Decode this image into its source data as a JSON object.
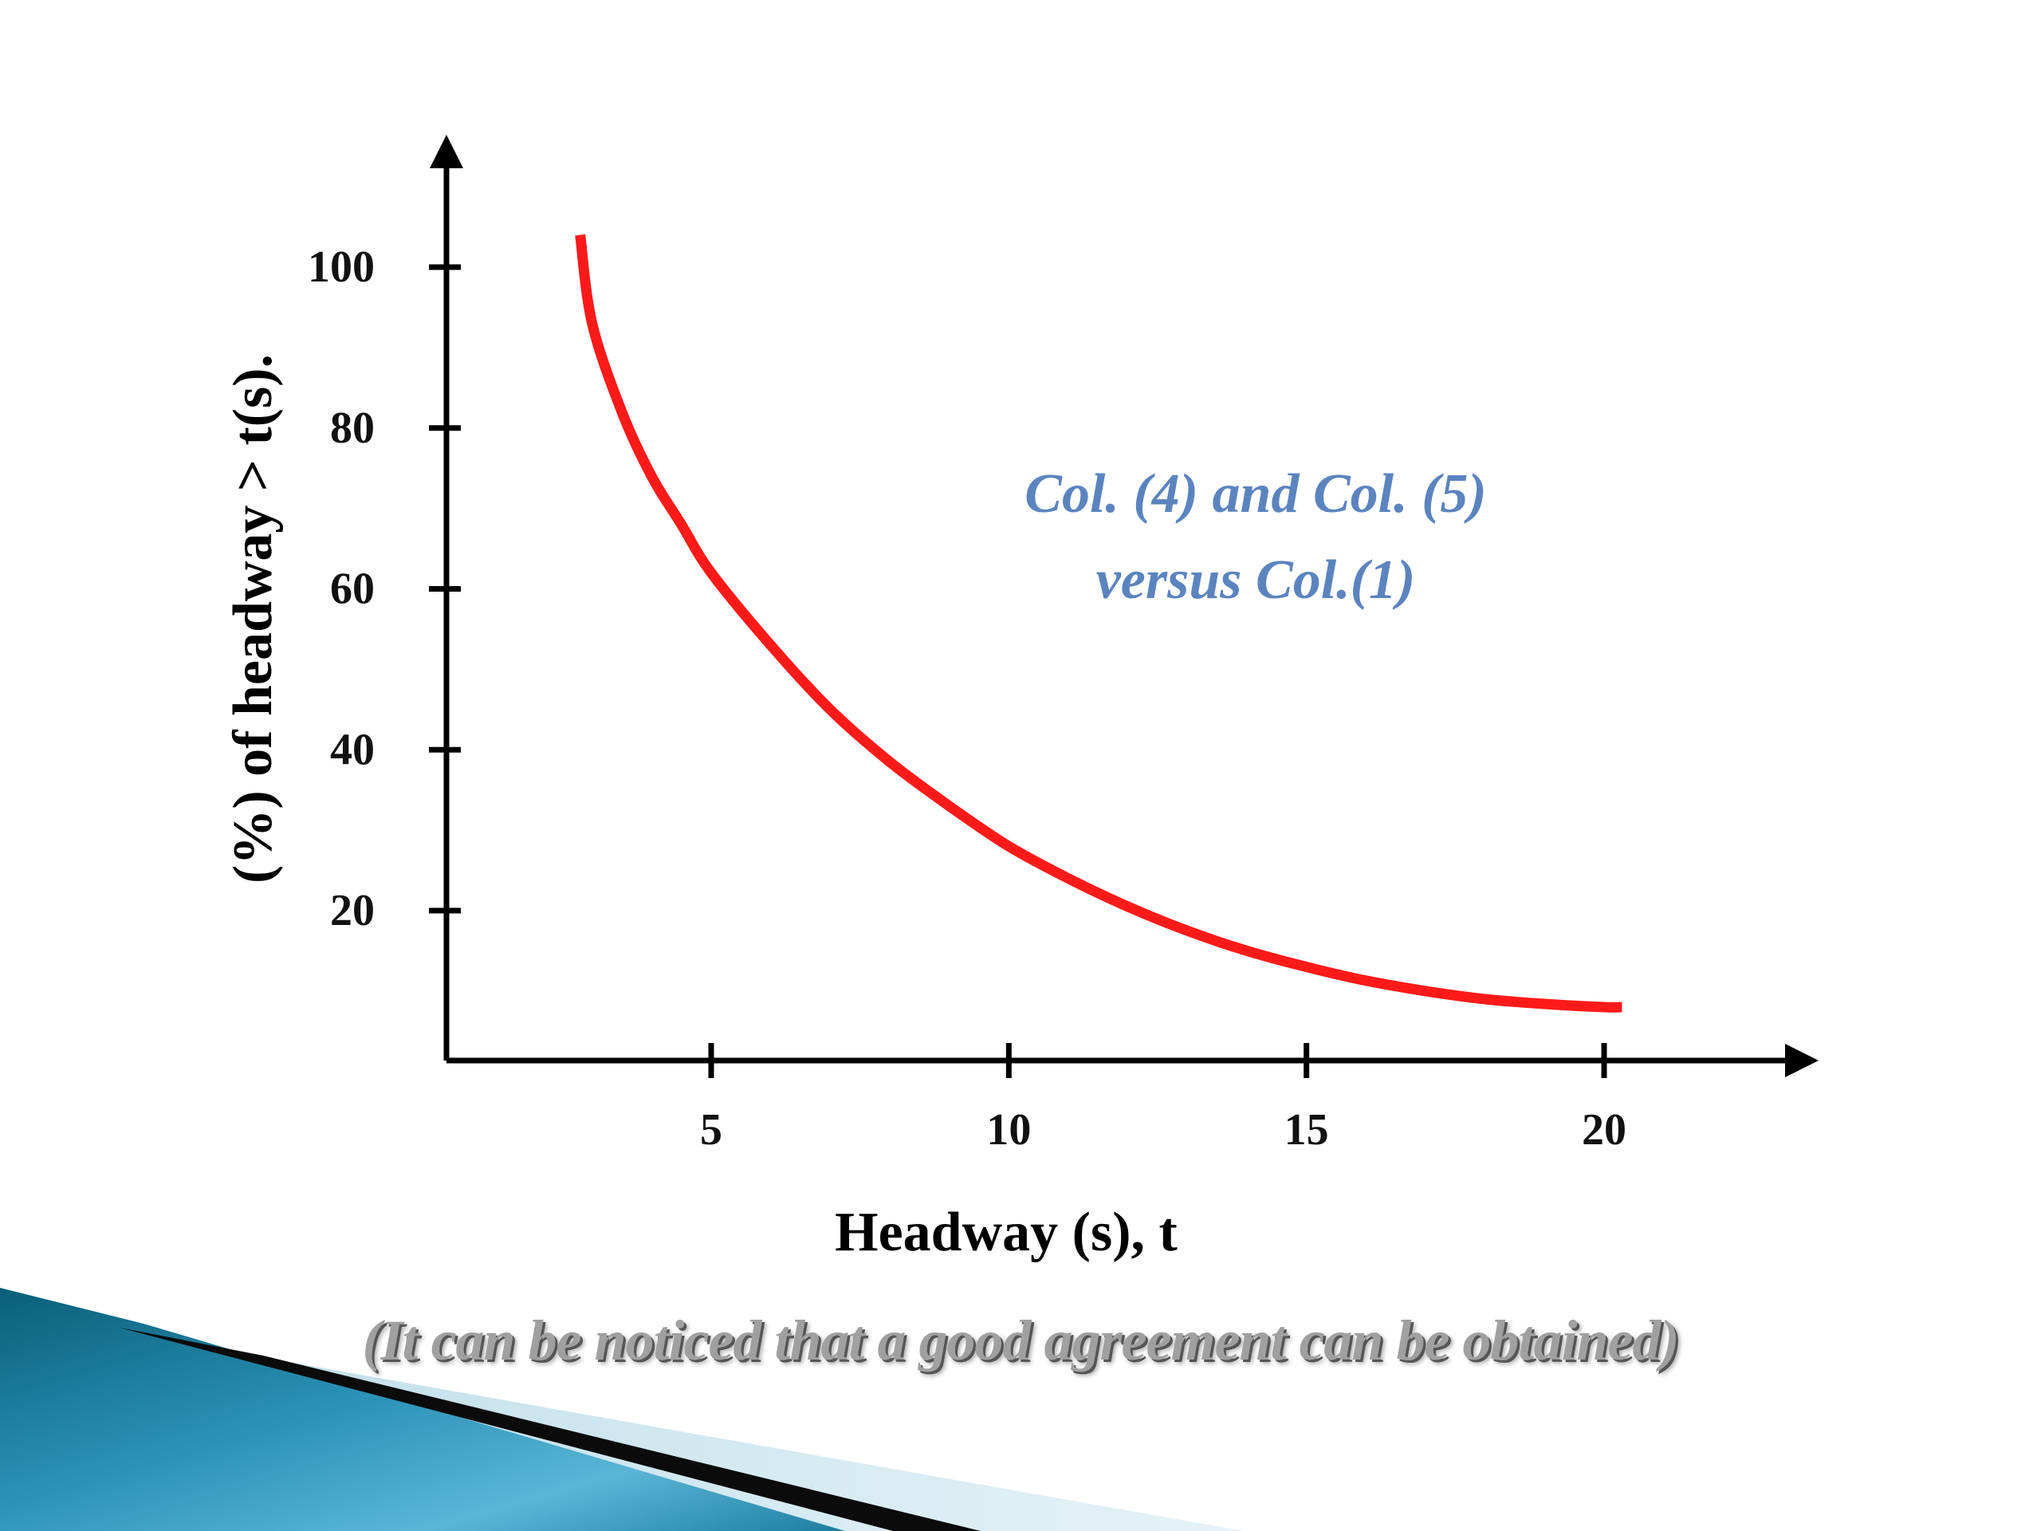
{
  "colors": {
    "curve": "#ff1a1a",
    "axis": "#000000",
    "annotation": "#5b84bf",
    "caption": "#a0a0a0",
    "decor_dark": "#0a6d86",
    "decor_light": "#5bb6d6",
    "decor_pale": "#d4eaf2"
  },
  "caption": "(It can be noticed that a good agreement can be obtained)",
  "chart_data": {
    "type": "line",
    "xlabel": "Headway (s), t",
    "ylabel": "(%) of headway > t(s).",
    "xlim": [
      0,
      24
    ],
    "ylim": [
      0,
      118
    ],
    "xticks": [
      5,
      10,
      15,
      20
    ],
    "yticks": [
      20,
      40,
      60,
      80,
      100
    ],
    "grid": false,
    "annotation": [
      "Col. (4) and Col. (5)",
      "versus Col.(1)"
    ],
    "series": [
      {
        "x": [
          2.8,
          3.0,
          3.5,
          4.0,
          4.5,
          5.0,
          6.0,
          7.0,
          8.0,
          9.0,
          10.0,
          11.0,
          12.0,
          13.0,
          14.0,
          15.0,
          16.0,
          17.0,
          18.0,
          19.0,
          20.0,
          20.3
        ],
        "values": [
          104,
          93,
          82,
          74,
          68,
          62,
          53,
          45,
          38.5,
          33,
          28,
          24,
          20.5,
          17.5,
          15,
          13,
          11.3,
          10,
          9,
          8.4,
          8,
          8
        ]
      }
    ]
  }
}
